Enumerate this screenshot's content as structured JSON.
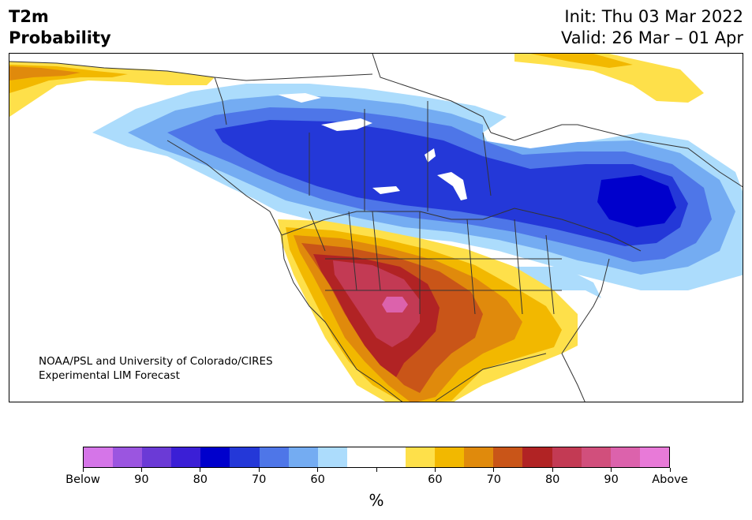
{
  "title": {
    "variable": "T2m",
    "quantity": "Probability",
    "init": "Init: Thu 03 Mar 2022",
    "valid": "Valid: 26 Mar – 01 Apr"
  },
  "credit": {
    "line1": "NOAA/PSL and University of Colorado/CIRES",
    "line2": "Experimental LIM Forecast"
  },
  "map_summary": {
    "below_normal_region": "Western/central Canada, northern US plains, Great Lakes, Quebec and Maritimes",
    "below_normal_max_category": "80-90 below",
    "above_normal_region": "Southwestern US, southern plains, Gulf coast, northern Mexico",
    "above_normal_max_category": "90+ above",
    "north_coast_above_normal": true
  },
  "colorbar": {
    "unit": "%",
    "colors": [
      "#d575e8",
      "#9b55e0",
      "#6b3ad6",
      "#3b1fd6",
      "#0000cc",
      "#2438d8",
      "#4e76e8",
      "#74acf2",
      "#acdcfc",
      "#ffffff",
      "#ffffff",
      "#fee04a",
      "#f2b800",
      "#e08a0c",
      "#c95518",
      "#b12324",
      "#c33a54",
      "#d14f7c",
      "#dc62ac",
      "#e87ad8"
    ],
    "tick_labels": [
      "Below",
      "90",
      "80",
      "70",
      "60",
      "",
      "60",
      "70",
      "80",
      "90",
      "Above"
    ],
    "tick_fractions": [
      0,
      0.1,
      0.2,
      0.3,
      0.4,
      0.5,
      0.6,
      0.7,
      0.8,
      0.9,
      1
    ]
  }
}
